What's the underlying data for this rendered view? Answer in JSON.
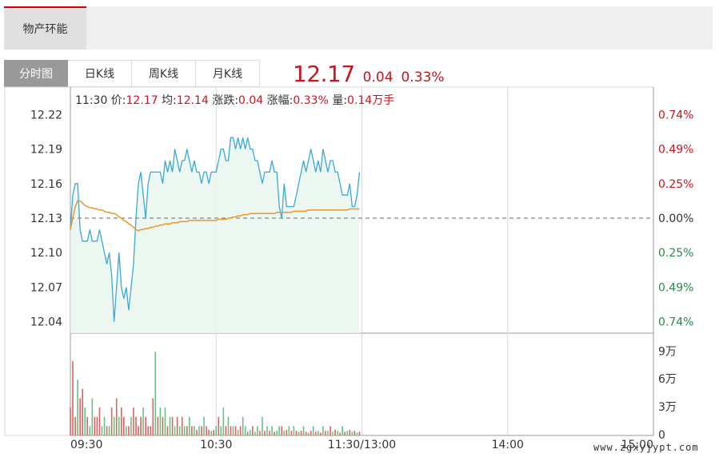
{
  "header_tab": "物产环能",
  "tabs": [
    "分时图",
    "日K线",
    "周K线",
    "月K线"
  ],
  "quote": {
    "price": "12.17",
    "change": "0.04",
    "change_pct": "0.33%"
  },
  "colors": {
    "up": "#c8161e",
    "down": "#2a8a4a",
    "price_line": "#3aa9d4",
    "avg_line": "#f0962a",
    "grid": "#d8d8d8"
  },
  "chart_data": {
    "type": "line",
    "info_bar": {
      "time": "11:30",
      "price_label": "价:",
      "price": "12.17",
      "avg_label": "均:",
      "avg": "12.14",
      "change_label": "涨跌:",
      "change": "0.04",
      "pct_label": "涨幅:",
      "pct": "0.33%",
      "vol_label": "量:",
      "vol": "0.14万手"
    },
    "prev_close": 12.13,
    "ylim": [
      12.03,
      12.23
    ],
    "y_ticks": [
      "12.22",
      "12.19",
      "12.16",
      "12.13",
      "12.10",
      "12.07",
      "12.04"
    ],
    "y_tick_values": [
      12.22,
      12.19,
      12.16,
      12.13,
      12.1,
      12.07,
      12.04
    ],
    "pct_ticks": [
      "0.74%",
      "0.49%",
      "0.25%",
      "0.00%",
      "0.25%",
      "0.49%",
      "0.74%"
    ],
    "x_ticks": [
      "09:30",
      "10:30",
      "11:30/13:00",
      "14:00",
      "15:00"
    ],
    "x_tick_minutes": [
      0,
      60,
      120,
      180,
      240
    ],
    "total_minutes": 240,
    "price": [
      12.12,
      12.15,
      12.16,
      12.16,
      12.12,
      12.11,
      12.11,
      12.11,
      12.12,
      12.11,
      12.11,
      12.11,
      12.12,
      12.11,
      12.1,
      12.09,
      12.1,
      12.08,
      12.04,
      12.07,
      12.1,
      12.07,
      12.06,
      12.07,
      12.05,
      12.07,
      12.09,
      12.13,
      12.16,
      12.17,
      12.15,
      12.13,
      12.16,
      12.17,
      12.17,
      12.17,
      12.17,
      12.17,
      12.16,
      12.18,
      12.17,
      12.18,
      12.17,
      12.19,
      12.18,
      12.17,
      12.18,
      12.18,
      12.19,
      12.18,
      12.17,
      12.18,
      12.17,
      12.17,
      12.16,
      12.17,
      12.17,
      12.16,
      12.17,
      12.17,
      12.17,
      12.18,
      12.19,
      12.19,
      12.18,
      12.18,
      12.2,
      12.2,
      12.19,
      12.2,
      12.19,
      12.2,
      12.19,
      12.2,
      12.19,
      12.19,
      12.18,
      12.18,
      12.17,
      12.16,
      12.17,
      12.17,
      12.17,
      12.18,
      12.17,
      12.17,
      12.14,
      12.13,
      12.16,
      12.14,
      12.14,
      12.14,
      12.14,
      12.15,
      12.16,
      12.17,
      12.18,
      12.17,
      12.18,
      12.19,
      12.18,
      12.17,
      12.18,
      12.17,
      12.19,
      12.18,
      12.17,
      12.18,
      12.18,
      12.17,
      12.17,
      12.16,
      12.15,
      12.15,
      12.15,
      12.16,
      12.14,
      12.14,
      12.15,
      12.17
    ],
    "avg": [
      12.12,
      12.13,
      12.14,
      12.145,
      12.145,
      12.143,
      12.141,
      12.14,
      12.139,
      12.139,
      12.138,
      12.138,
      12.137,
      12.137,
      12.136,
      12.135,
      12.135,
      12.134,
      12.134,
      12.133,
      12.131,
      12.13,
      12.128,
      12.127,
      12.125,
      12.124,
      12.122,
      12.12,
      12.119,
      12.12,
      12.12,
      12.121,
      12.121,
      12.122,
      12.122,
      12.123,
      12.123,
      12.124,
      12.124,
      12.125,
      12.125,
      12.125,
      12.126,
      12.126,
      12.126,
      12.127,
      12.127,
      12.127,
      12.127,
      12.128,
      12.128,
      12.128,
      12.128,
      12.128,
      12.128,
      12.128,
      12.128,
      12.128,
      12.128,
      12.128,
      12.128,
      12.129,
      12.129,
      12.129,
      12.129,
      12.13,
      12.13,
      12.131,
      12.131,
      12.132,
      12.132,
      12.133,
      12.133,
      12.133,
      12.134,
      12.134,
      12.134,
      12.134,
      12.134,
      12.134,
      12.134,
      12.134,
      12.134,
      12.134,
      12.134,
      12.135,
      12.135,
      12.135,
      12.135,
      12.135,
      12.135,
      12.135,
      12.136,
      12.136,
      12.136,
      12.136,
      12.136,
      12.136,
      12.137,
      12.137,
      12.137,
      12.137,
      12.137,
      12.137,
      12.137,
      12.137,
      12.137,
      12.137,
      12.137,
      12.137,
      12.137,
      12.137,
      12.137,
      12.137,
      12.137,
      12.138,
      12.138,
      12.138,
      12.138,
      12.138
    ],
    "volume": {
      "unit_ticks": [
        "9万",
        "6万",
        "3万",
        "0"
      ],
      "tick_values": [
        9,
        6,
        3,
        0
      ],
      "ylim": [
        0,
        11
      ],
      "values": [
        3,
        8,
        2,
        6,
        4,
        5,
        3,
        2,
        1,
        4,
        2,
        2,
        3,
        1,
        2,
        1,
        1,
        3,
        2,
        4,
        2,
        3,
        2,
        1,
        1,
        2,
        3,
        2,
        1,
        2,
        3,
        2,
        1,
        1,
        4,
        9,
        2,
        3,
        2,
        3,
        1,
        2,
        2,
        1,
        2,
        1,
        2,
        1,
        1,
        2,
        1,
        1,
        0.6,
        1,
        1,
        2,
        1,
        0.6,
        0.5,
        0.6,
        1,
        2,
        1,
        3,
        1,
        2,
        1,
        1,
        1,
        0.6,
        1,
        2,
        1,
        0.4,
        0.6,
        1,
        0.4,
        1,
        0.5,
        2,
        0.5,
        1,
        0.5,
        1,
        0.4,
        0.5,
        1,
        1,
        0.5,
        0.6,
        1,
        0.5,
        1,
        0.5,
        0.4,
        0.5,
        1,
        0.4,
        0.3,
        0.5,
        1,
        0.4,
        0.5,
        0.3,
        1,
        0.5,
        0.5,
        1,
        0.4,
        0.6,
        0.5,
        0.3,
        1,
        0.4,
        0.5,
        0.6,
        0.4,
        0.5,
        0.3,
        0.4
      ],
      "direction": [
        "up",
        "up",
        "up",
        "down",
        "up",
        "up",
        "down",
        "up",
        "down",
        "down",
        "up",
        "up",
        "up",
        "down",
        "down",
        "up",
        "down",
        "up",
        "down",
        "up",
        "down",
        "up",
        "up",
        "down",
        "up",
        "down",
        "up",
        "up",
        "up",
        "up",
        "down",
        "up",
        "up",
        "up",
        "up",
        "down",
        "up",
        "down",
        "up",
        "down",
        "up",
        "down",
        "up",
        "down",
        "up",
        "down",
        "up",
        "down",
        "up",
        "down",
        "up",
        "down",
        "up",
        "down",
        "up",
        "down",
        "up",
        "up",
        "down",
        "up",
        "down",
        "up",
        "down",
        "down",
        "up",
        "down",
        "up",
        "down",
        "up",
        "down",
        "up",
        "down",
        "down",
        "up",
        "down",
        "up",
        "down",
        "down",
        "up",
        "down",
        "up",
        "down",
        "up",
        "down",
        "up",
        "down",
        "down",
        "up",
        "down",
        "up",
        "down",
        "up",
        "down",
        "up",
        "down",
        "up",
        "down",
        "up",
        "down",
        "up",
        "down",
        "up",
        "down",
        "up",
        "down",
        "up",
        "down",
        "up",
        "down",
        "up",
        "down",
        "up",
        "down",
        "up",
        "down",
        "up",
        "down",
        "up",
        "down",
        "up"
      ]
    }
  },
  "watermark": "www.zgxyjypt.com"
}
